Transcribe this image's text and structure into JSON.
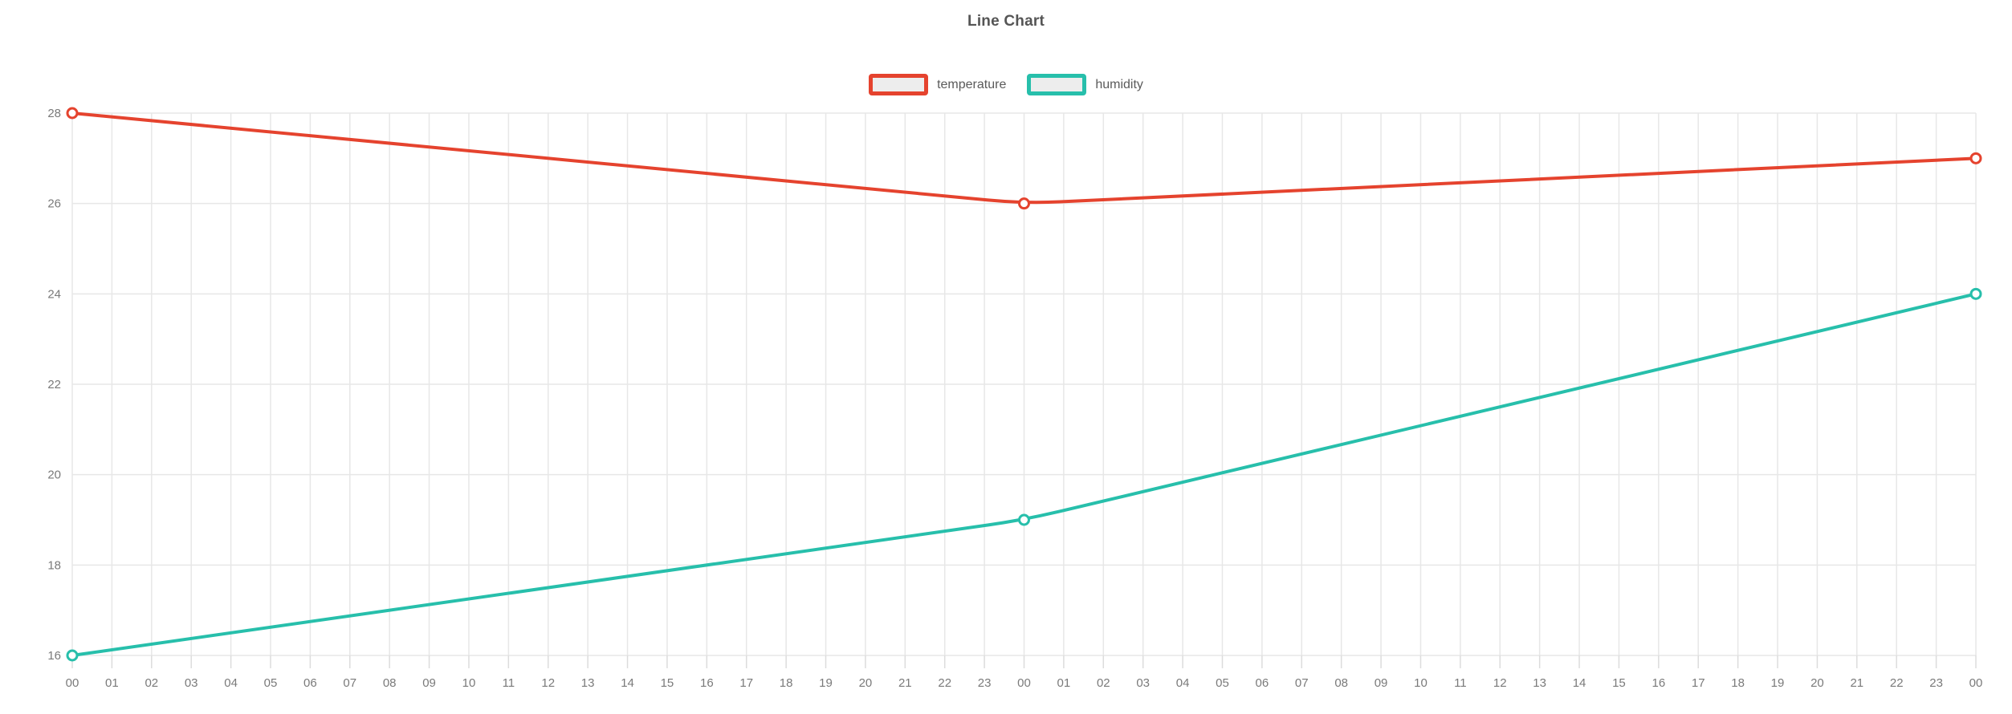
{
  "title": "Line Chart",
  "chart_data": {
    "type": "line",
    "title": "Line Chart",
    "xlabel": "",
    "ylabel": "",
    "x_labels": [
      "00",
      "01",
      "02",
      "03",
      "04",
      "05",
      "06",
      "07",
      "08",
      "09",
      "10",
      "11",
      "12",
      "13",
      "14",
      "15",
      "16",
      "17",
      "18",
      "19",
      "20",
      "21",
      "22",
      "23",
      "00",
      "01",
      "02",
      "03",
      "04",
      "05",
      "06",
      "07",
      "08",
      "09",
      "10",
      "11",
      "12",
      "13",
      "14",
      "15",
      "16",
      "17",
      "18",
      "19",
      "20",
      "21",
      "22",
      "23",
      "00"
    ],
    "y_ticks": [
      16,
      18,
      20,
      22,
      24,
      26,
      28
    ],
    "ylim": [
      16,
      28
    ],
    "grid": true,
    "legend_position": "top-center",
    "marker": "hollow-circle",
    "series": [
      {
        "name": "temperature",
        "color": "#e5432e",
        "x_indices": [
          0,
          24,
          48
        ],
        "x_labels_at_points": [
          "00",
          "00",
          "00"
        ],
        "values": [
          28,
          26,
          27
        ]
      },
      {
        "name": "humidity",
        "color": "#27bfab",
        "x_indices": [
          0,
          24,
          48
        ],
        "x_labels_at_points": [
          "00",
          "00",
          "00"
        ],
        "values": [
          16,
          19,
          24
        ]
      }
    ],
    "colors": {
      "grid": "#e7e7e7",
      "tick": "#dcdcdc",
      "axis_label": "#7a7a7a",
      "title": "#555555",
      "legend_fill": "#ededed",
      "background": "#ffffff"
    }
  }
}
